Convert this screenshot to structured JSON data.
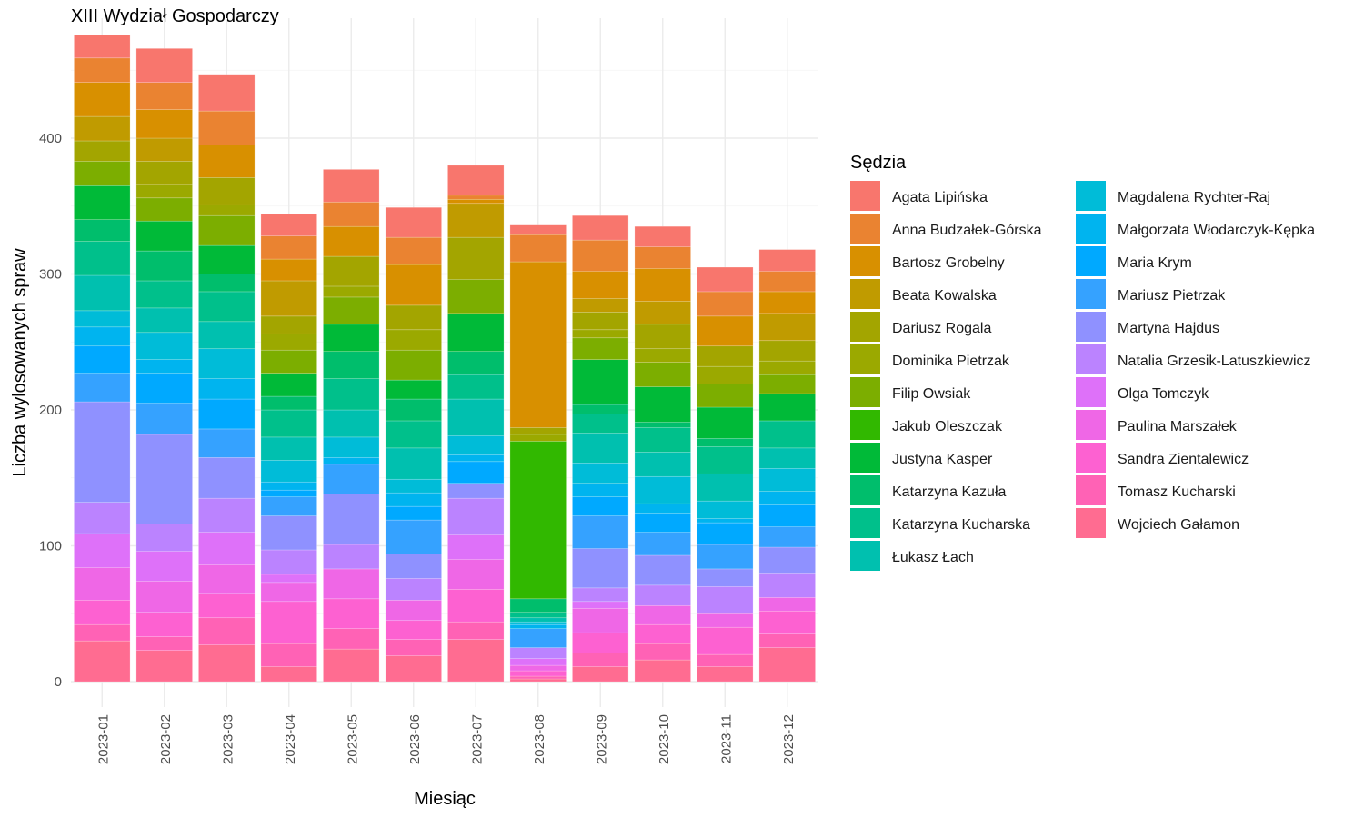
{
  "chart_data": {
    "type": "bar",
    "stacked": true,
    "title": "XIII Wydział Gospodarczy",
    "xlabel": "Miesiąc",
    "ylabel": "Liczba wylosowanych spraw",
    "ylim": [
      0,
      470
    ],
    "yticks": [
      0,
      100,
      200,
      300,
      400
    ],
    "grid": true,
    "legend": {
      "title": "Sędzia",
      "position": "right"
    },
    "categories": [
      "2023-01",
      "2023-02",
      "2023-03",
      "2023-04",
      "2023-05",
      "2023-06",
      "2023-07",
      "2023-08",
      "2023-09",
      "2023-10",
      "2023-11",
      "2023-12"
    ],
    "series": [
      {
        "name": "Agata Lipińska",
        "color": "#F8766D",
        "values": [
          17,
          25,
          27,
          16,
          24,
          22,
          22,
          7,
          18,
          15,
          18,
          16
        ]
      },
      {
        "name": "Anna Budzałek-Górska",
        "color": "#EA8331",
        "values": [
          18,
          20,
          25,
          17,
          18,
          20,
          3,
          20,
          23,
          16,
          18,
          15
        ]
      },
      {
        "name": "Bartosz Grobelny",
        "color": "#D89000",
        "values": [
          25,
          21,
          24,
          16,
          22,
          30,
          3,
          122,
          20,
          24,
          22,
          16
        ]
      },
      {
        "name": "Beata Kowalska",
        "color": "#C09B00",
        "values": [
          18,
          17,
          0,
          26,
          0,
          0,
          25,
          0,
          10,
          17,
          0,
          20
        ]
      },
      {
        "name": "Dariusz Rogala",
        "color": "#A3A500",
        "values": [
          15,
          17,
          20,
          13,
          22,
          18,
          31,
          5,
          13,
          18,
          15,
          15
        ]
      },
      {
        "name": "Dominika Pietrzak",
        "color": "#9BA900",
        "values": [
          0,
          10,
          8,
          12,
          8,
          15,
          0,
          5,
          6,
          10,
          13,
          10
        ]
      },
      {
        "name": "Filip Owsiak",
        "color": "#7CAE00",
        "values": [
          18,
          17,
          22,
          17,
          20,
          22,
          25,
          0,
          16,
          18,
          17,
          14
        ]
      },
      {
        "name": "Jakub Oleszczak",
        "color": "#31B800",
        "values": [
          0,
          0,
          0,
          0,
          0,
          0,
          0,
          116,
          0,
          0,
          0,
          0
        ]
      },
      {
        "name": "Justyna Kasper",
        "color": "#00BA38",
        "values": [
          25,
          22,
          21,
          17,
          20,
          14,
          28,
          0,
          33,
          26,
          23,
          20
        ]
      },
      {
        "name": "Katarzyna Kazuła",
        "color": "#00BE6C",
        "values": [
          16,
          22,
          13,
          10,
          20,
          16,
          17,
          10,
          7,
          4,
          6,
          0
        ]
      },
      {
        "name": "Katarzyna Kucharska",
        "color": "#00C08B",
        "values": [
          25,
          20,
          22,
          20,
          23,
          20,
          18,
          4,
          14,
          18,
          20,
          20
        ]
      },
      {
        "name": "Łukasz Łach",
        "color": "#00C0AF",
        "values": [
          26,
          18,
          20,
          17,
          20,
          23,
          27,
          3,
          22,
          18,
          20,
          15
        ]
      },
      {
        "name": "Magdalena Rychter-Raj",
        "color": "#00BCD8",
        "values": [
          12,
          20,
          22,
          16,
          15,
          10,
          14,
          2,
          15,
          20,
          13,
          17
        ]
      },
      {
        "name": "Małgorzata Włodarczyk-Kępka",
        "color": "#00B4EF",
        "values": [
          14,
          10,
          15,
          6,
          5,
          10,
          5,
          3,
          10,
          7,
          3,
          10
        ]
      },
      {
        "name": "Maria Krym",
        "color": "#00A9FF",
        "values": [
          20,
          22,
          22,
          5,
          0,
          10,
          16,
          0,
          14,
          14,
          16,
          16
        ]
      },
      {
        "name": "Mariusz Pietrzak",
        "color": "#35A2FF",
        "values": [
          21,
          23,
          21,
          14,
          22,
          25,
          0,
          14,
          24,
          17,
          18,
          15
        ]
      },
      {
        "name": "Martyna Hajdus",
        "color": "#8F91FF",
        "values": [
          74,
          66,
          30,
          25,
          37,
          18,
          11,
          0,
          29,
          22,
          13,
          19
        ]
      },
      {
        "name": "Natalia Grzesik-Latuszkiewicz",
        "color": "#BB83FF",
        "values": [
          23,
          20,
          25,
          18,
          18,
          16,
          27,
          8,
          10,
          15,
          20,
          18
        ]
      },
      {
        "name": "Olga Tomczyk",
        "color": "#DE71F9",
        "values": [
          25,
          22,
          24,
          6,
          0,
          0,
          18,
          5,
          5,
          0,
          0,
          0
        ]
      },
      {
        "name": "Paulina Marszałek",
        "color": "#EF67E6",
        "values": [
          24,
          23,
          21,
          14,
          22,
          15,
          22,
          4,
          18,
          14,
          10,
          10
        ]
      },
      {
        "name": "Sandra Zientalewicz",
        "color": "#FD61D1",
        "values": [
          18,
          18,
          18,
          31,
          22,
          14,
          24,
          4,
          15,
          14,
          20,
          17
        ]
      },
      {
        "name": "Tomasz Kucharski",
        "color": "#FF62B5",
        "values": [
          12,
          10,
          20,
          17,
          15,
          12,
          13,
          2,
          10,
          12,
          9,
          10
        ]
      },
      {
        "name": "Wojciech Gałamon",
        "color": "#FF6C91",
        "values": [
          30,
          23,
          27,
          11,
          24,
          19,
          31,
          2,
          11,
          16,
          11,
          25
        ]
      }
    ]
  }
}
